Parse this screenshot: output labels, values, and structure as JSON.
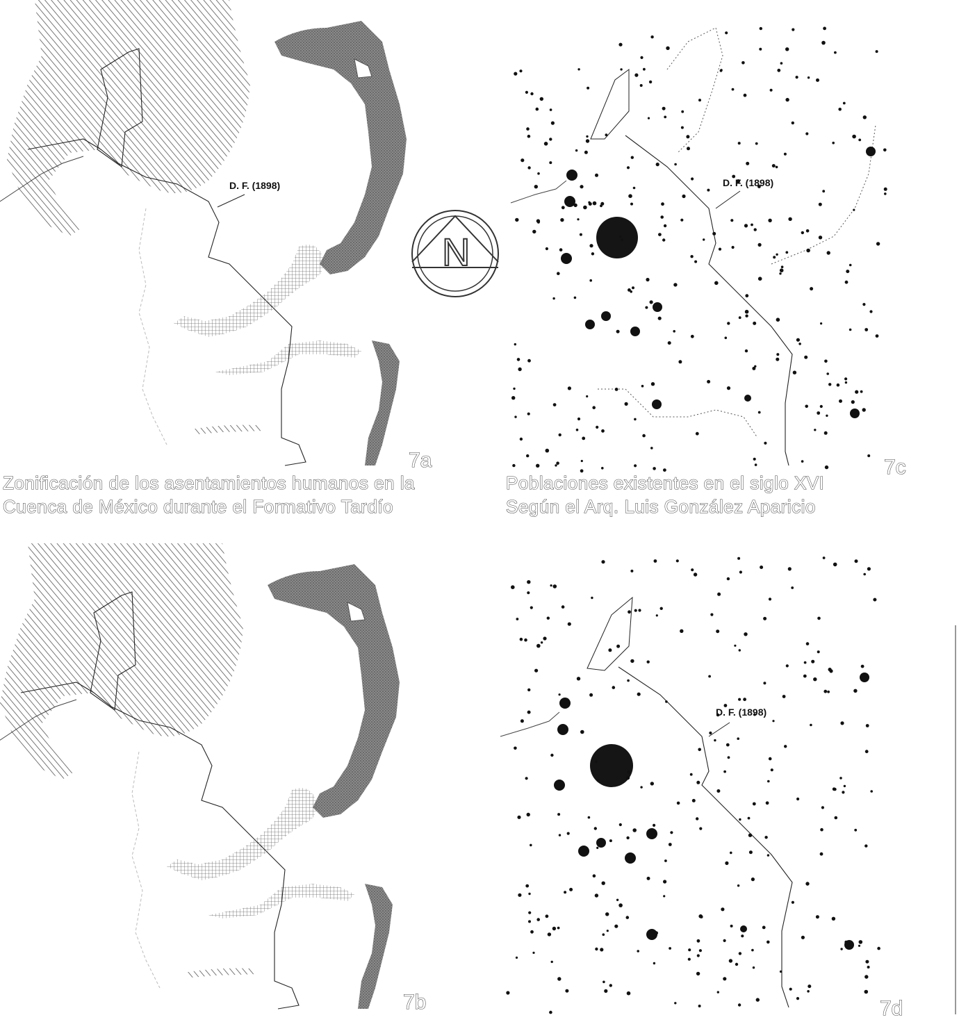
{
  "panels": {
    "a": {
      "label": "7a",
      "df_label": "D. F. (1898)"
    },
    "b": {
      "label": "7b"
    },
    "c": {
      "label": "7c",
      "df_label": "D. F. (1898)"
    },
    "d": {
      "label": "7d",
      "df_label": "D. F. (1898)"
    }
  },
  "captions": {
    "a_line1": "Zonificación de los asentamientos humanos en la",
    "a_line2": "Cuenca de México durante el Formativo Tardío",
    "c_line1": "Poblaciones existentes en el siglo XVI",
    "c_line2": "Según el Arq. Luis González Aparicio"
  },
  "compass": {
    "letter": "N"
  },
  "colors": {
    "ink": "#111111",
    "hatch": "#555555",
    "shade": "#7a7a7a",
    "background": "#ffffff"
  }
}
